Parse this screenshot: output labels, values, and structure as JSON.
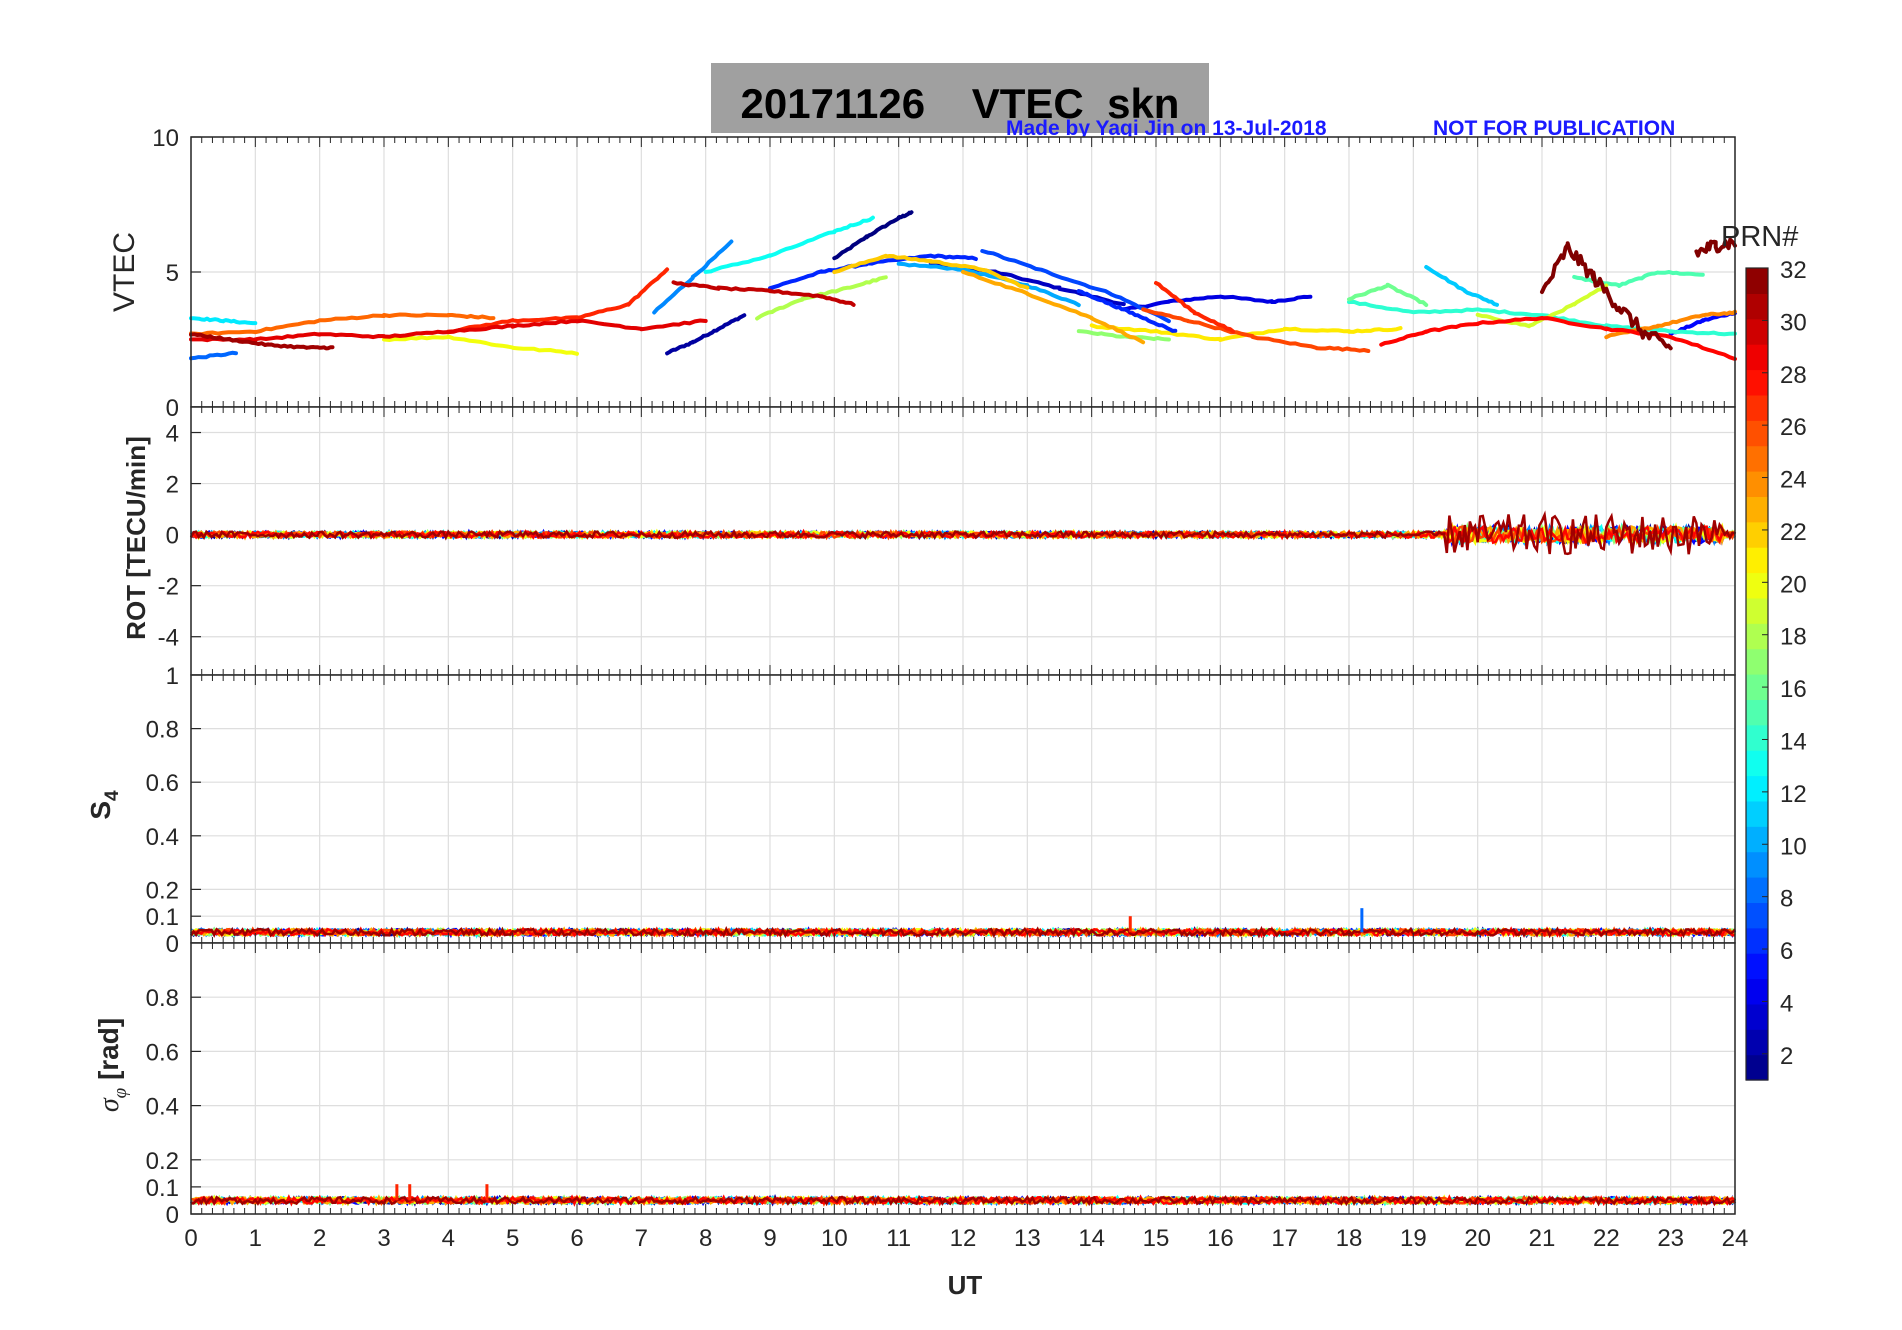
{
  "header": {
    "title": "20171126    VTEC  skn",
    "credit": "Made by Yaqi Jin on 13-Jul-2018",
    "notice": "NOT FOR PUBLICATION",
    "title_bg": "#a0a0a0",
    "annotation_color": "#1a1aff"
  },
  "colorbar": {
    "label": "PRN#",
    "ticks": [
      "2",
      "4",
      "6",
      "8",
      "10",
      "12",
      "14",
      "16",
      "18",
      "20",
      "22",
      "24",
      "26",
      "28",
      "30",
      "32"
    ],
    "range": [
      1,
      32
    ],
    "colormap": "jet"
  },
  "chart_data": [
    {
      "type": "line",
      "panel": "vtec",
      "ylabel": "VTEC",
      "ylim": [
        0,
        10
      ],
      "yticks": [
        "0",
        "5",
        "10"
      ],
      "xlim": [
        0,
        24
      ],
      "grid": true,
      "series": [
        {
          "prn": 1,
          "x": [
            10.0,
            10.5,
            11.0,
            11.2
          ],
          "y": [
            5.5,
            6.3,
            7.0,
            7.2
          ]
        },
        {
          "prn": 2,
          "x": [
            7.4,
            7.8,
            8.2,
            8.6
          ],
          "y": [
            2.0,
            2.4,
            2.9,
            3.4
          ]
        },
        {
          "prn": 3,
          "x": [
            11.5,
            12.5,
            13.5,
            14.5
          ],
          "y": [
            5.3,
            5.0,
            4.4,
            3.8
          ]
        },
        {
          "prn": 4,
          "x": [
            14.5,
            15.2,
            16.0,
            16.8,
            17.4
          ],
          "y": [
            3.6,
            3.9,
            4.1,
            3.9,
            4.1
          ]
        },
        {
          "prn": 5,
          "x": [
            23.0,
            23.5,
            24.0
          ],
          "y": [
            2.7,
            3.2,
            3.5
          ]
        },
        {
          "prn": 6,
          "x": [
            9.0,
            9.8,
            10.5,
            11.5,
            12.2
          ],
          "y": [
            4.4,
            5.0,
            5.3,
            5.6,
            5.5
          ]
        },
        {
          "prn": 7,
          "x": [
            12.3,
            13.3,
            14.3,
            15.2
          ],
          "y": [
            5.8,
            5.0,
            4.2,
            3.2
          ]
        },
        {
          "prn": 8,
          "x": [
            0.0,
            0.7
          ],
          "y": [
            1.8,
            2.0
          ]
        },
        {
          "prn": 9,
          "x": [
            7.2,
            7.8,
            8.4
          ],
          "y": [
            3.5,
            4.8,
            6.1
          ]
        },
        {
          "prn": 10,
          "x": [
            11.0,
            12.0,
            13.0,
            13.8
          ],
          "y": [
            5.3,
            5.1,
            4.5,
            3.8
          ]
        },
        {
          "prn": 11,
          "x": [
            19.2,
            19.8,
            20.3
          ],
          "y": [
            5.2,
            4.3,
            3.8
          ]
        },
        {
          "prn": 12,
          "x": [
            0.0,
            0.5,
            1.0
          ],
          "y": [
            3.3,
            3.2,
            3.1
          ]
        },
        {
          "prn": 13,
          "x": [
            8.0,
            9.0,
            10.0,
            10.6
          ],
          "y": [
            5.0,
            5.6,
            6.5,
            7.0
          ]
        },
        {
          "prn": 14,
          "x": [
            18.0,
            19.0,
            20.0,
            21.0,
            22.0,
            23.0,
            24.0
          ],
          "y": [
            3.9,
            3.5,
            3.6,
            3.4,
            3.0,
            2.8,
            2.7
          ]
        },
        {
          "prn": 15,
          "x": [
            21.5,
            22.2,
            22.8,
            23.5
          ],
          "y": [
            4.8,
            4.5,
            5.0,
            4.9
          ]
        },
        {
          "prn": 16,
          "x": [
            18.0,
            18.6,
            19.2
          ],
          "y": [
            4.0,
            4.5,
            3.8
          ]
        },
        {
          "prn": 17,
          "x": [
            13.8,
            14.5,
            15.2
          ],
          "y": [
            2.8,
            2.6,
            2.5
          ]
        },
        {
          "prn": 18,
          "x": [
            8.8,
            9.5,
            10.2,
            10.8
          ],
          "y": [
            3.3,
            4.0,
            4.4,
            4.8
          ]
        },
        {
          "prn": 19,
          "x": [
            20.0,
            20.8,
            21.5,
            22.0
          ],
          "y": [
            3.4,
            3.0,
            3.8,
            4.5
          ]
        },
        {
          "prn": 20,
          "x": [
            3.0,
            4.0,
            5.0,
            6.0
          ],
          "y": [
            2.5,
            2.6,
            2.2,
            2.0
          ]
        },
        {
          "prn": 21,
          "x": [
            14.0,
            15.0,
            16.0,
            17.0,
            18.0,
            18.8
          ],
          "y": [
            3.0,
            2.8,
            2.5,
            2.9,
            2.8,
            2.9
          ]
        },
        {
          "prn": 22,
          "x": [
            10.0,
            10.8,
            11.5,
            12.3,
            13.0
          ],
          "y": [
            5.0,
            5.6,
            5.4,
            5.1,
            4.4
          ]
        },
        {
          "prn": 23,
          "x": [
            12.0,
            13.0,
            14.0,
            14.8
          ],
          "y": [
            5.0,
            4.2,
            3.3,
            2.4
          ]
        },
        {
          "prn": 24,
          "x": [
            22.0,
            22.8,
            23.5,
            24.0
          ],
          "y": [
            2.6,
            3.0,
            3.4,
            3.5
          ]
        },
        {
          "prn": 25,
          "x": [
            0.0,
            1.0,
            2.0,
            3.0,
            4.0,
            4.7
          ],
          "y": [
            2.7,
            2.8,
            3.2,
            3.4,
            3.4,
            3.3
          ]
        },
        {
          "prn": 26,
          "x": [
            14.8,
            15.5,
            16.5,
            17.5,
            18.3
          ],
          "y": [
            3.6,
            3.2,
            2.6,
            2.2,
            2.1
          ]
        },
        {
          "prn": 27,
          "x": [
            4.0,
            5.0,
            6.0,
            6.8,
            7.4
          ],
          "y": [
            2.8,
            3.2,
            3.3,
            3.8,
            5.1
          ]
        },
        {
          "prn": 28,
          "x": [
            18.5,
            19.2,
            20.0,
            21.0,
            22.0,
            23.0,
            24.0
          ],
          "y": [
            2.3,
            2.8,
            3.1,
            3.3,
            2.9,
            2.6,
            1.8
          ]
        },
        {
          "prn": 29,
          "x": [
            0.0,
            1.0,
            2.0,
            3.0,
            4.0,
            5.0,
            6.0,
            7.0,
            8.0
          ],
          "y": [
            2.5,
            2.5,
            2.7,
            2.6,
            2.8,
            3.0,
            3.2,
            2.9,
            3.2
          ]
        },
        {
          "prn": 30,
          "x": [
            7.5,
            8.2,
            9.0,
            9.8,
            10.3
          ],
          "y": [
            4.6,
            4.4,
            4.3,
            4.1,
            3.8
          ]
        },
        {
          "prn": 31,
          "x": [
            0.0,
            0.6,
            1.2,
            1.8,
            2.2
          ],
          "y": [
            2.7,
            2.5,
            2.3,
            2.2,
            2.2
          ]
        },
        {
          "prn": 32,
          "x": [
            21.0,
            21.4,
            21.8,
            22.2,
            22.6,
            23.0
          ],
          "y": [
            4.2,
            5.9,
            4.8,
            3.7,
            2.7,
            2.2
          ]
        },
        {
          "prn": 32,
          "x": [
            23.4,
            23.7,
            24.0
          ],
          "y": [
            5.7,
            6.0,
            6.1
          ]
        },
        {
          "prn": 27,
          "x": [
            15.0,
            15.6,
            16.2
          ],
          "y": [
            4.6,
            3.5,
            2.8
          ]
        },
        {
          "prn": 6,
          "x": [
            13.8,
            14.3,
            14.8,
            15.3
          ],
          "y": [
            4.3,
            3.8,
            3.3,
            2.8
          ]
        }
      ]
    },
    {
      "type": "line",
      "panel": "rot",
      "ylabel": "ROT [TECU/min]",
      "ylim": [
        -5.5,
        5
      ],
      "yticks": [
        "-4",
        "-2",
        "0",
        "2",
        "4"
      ],
      "xlim": [
        0,
        24
      ],
      "grid": true,
      "noise_note_values": {
        "baseline": 0,
        "typical_amplitude": 0.12,
        "peak_amplitude_21_23h": 0.8
      }
    },
    {
      "type": "line",
      "panel": "s4",
      "ylabel": "S4",
      "ylim": [
        0,
        1
      ],
      "yticks": [
        "0",
        "0.1",
        "0.2",
        "0.4",
        "0.6",
        "0.8",
        "1"
      ],
      "xlim": [
        0,
        24
      ],
      "grid": true,
      "baseline": 0.04,
      "spikes": [
        {
          "x": 18.2,
          "y": 0.13
        },
        {
          "x": 14.6,
          "y": 0.1
        }
      ]
    },
    {
      "type": "line",
      "panel": "sigma_phi",
      "ylabel": "σφ [rad]",
      "ylim": [
        0,
        1
      ],
      "yticks": [
        "0",
        "0.1",
        "0.2",
        "0.4",
        "0.6",
        "0.8"
      ],
      "xlim": [
        0,
        24
      ],
      "xlabel": "UT",
      "xticks": [
        "0",
        "1",
        "2",
        "3",
        "4",
        "5",
        "6",
        "7",
        "8",
        "9",
        "10",
        "11",
        "12",
        "13",
        "14",
        "15",
        "16",
        "17",
        "18",
        "19",
        "20",
        "21",
        "22",
        "23",
        "24"
      ],
      "grid": true,
      "baseline": 0.05,
      "spikes": [
        {
          "x": 3.2,
          "y": 0.11
        },
        {
          "x": 3.4,
          "y": 0.11
        },
        {
          "x": 4.6,
          "y": 0.11
        }
      ]
    }
  ]
}
